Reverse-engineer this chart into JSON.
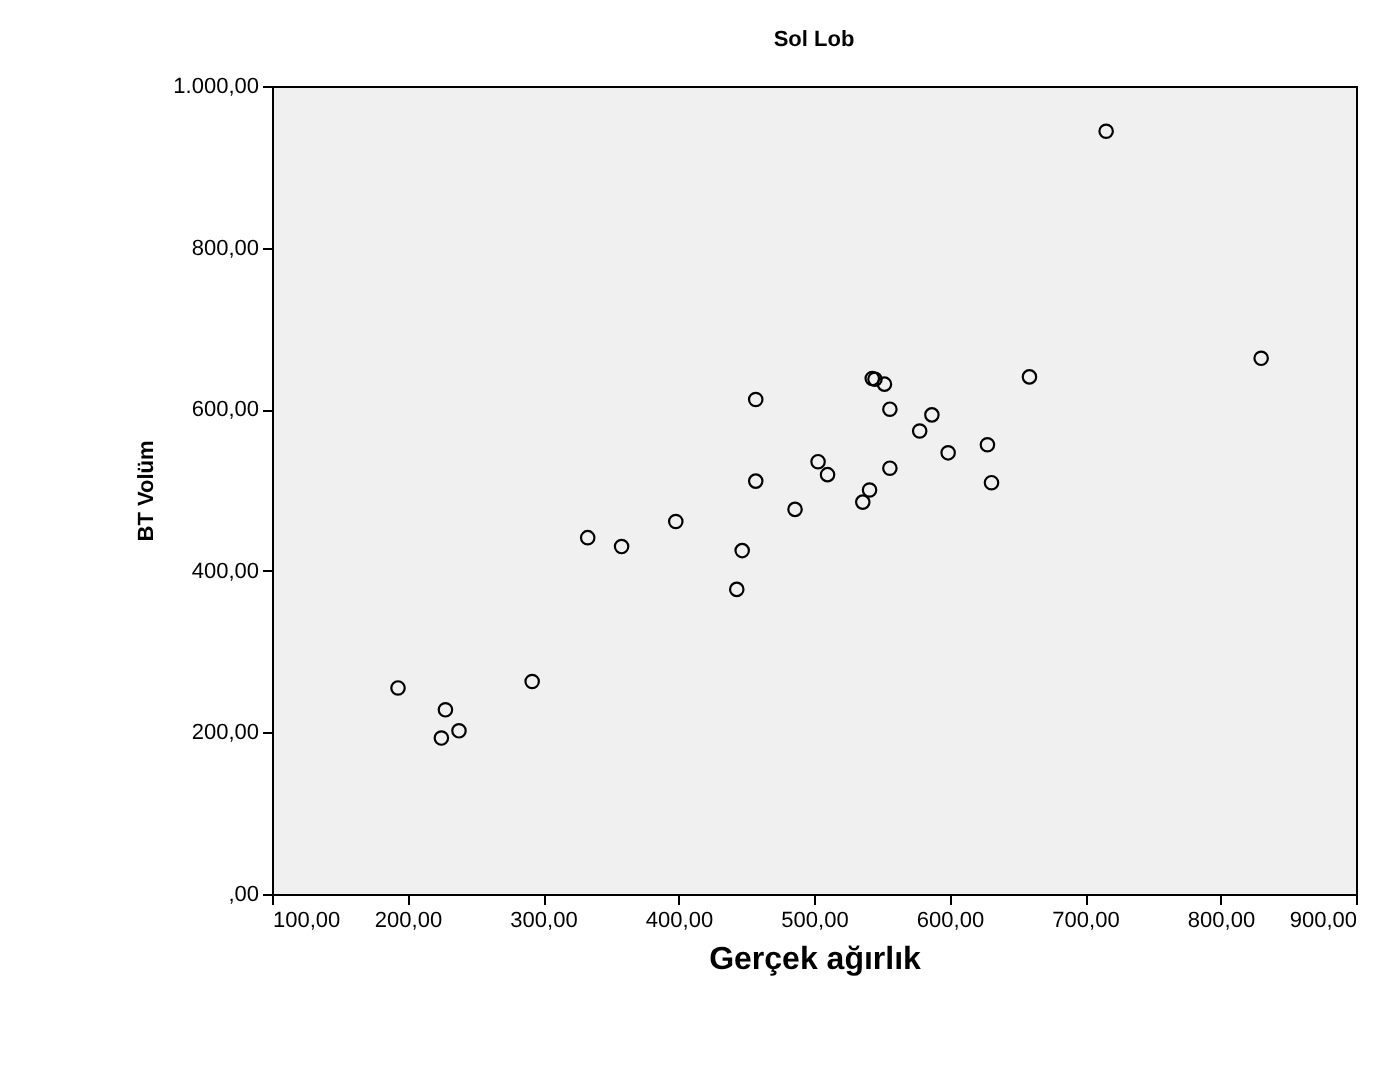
{
  "chart_data": {
    "type": "scatter",
    "title": "Sol Lob",
    "xlabel": "Gerçek ağırlık",
    "ylabel": "BT Volüm",
    "x": [
      715.6,
      830,
      659,
      543,
      545,
      552,
      457,
      556,
      587,
      578,
      599,
      628,
      631,
      556,
      503,
      510,
      457,
      541,
      536,
      486,
      398,
      333,
      358,
      447,
      443,
      292,
      193,
      228,
      238,
      225
    ],
    "series": [
      {
        "color": "#000000",
        "values": [
          944,
          663,
          640,
          638,
          637,
          631,
          612,
          600,
          593,
          573,
          546,
          556,
          509,
          527,
          535,
          519,
          511,
          500,
          485,
          476,
          461,
          441,
          430,
          425,
          377,
          263,
          255,
          228,
          202,
          193
        ]
      }
    ],
    "xlim": [
      100,
      900
    ],
    "ylim": [
      0,
      1000
    ],
    "xticks": [
      {
        "value": 100,
        "label": "100,00"
      },
      {
        "value": 200,
        "label": "200,00"
      },
      {
        "value": 300,
        "label": "300,00"
      },
      {
        "value": 400,
        "label": "400,00"
      },
      {
        "value": 500,
        "label": "500,00"
      },
      {
        "value": 600,
        "label": "600,00"
      },
      {
        "value": 700,
        "label": "700,00"
      },
      {
        "value": 800,
        "label": "800,00"
      },
      {
        "value": 900,
        "label": "900,00"
      }
    ],
    "yticks": [
      {
        "value": 0,
        "label": ",00"
      },
      {
        "value": 200,
        "label": "200,00"
      },
      {
        "value": 400,
        "label": "400,00"
      },
      {
        "value": 600,
        "label": "600,00"
      },
      {
        "value": 800,
        "label": "800,00"
      },
      {
        "value": 1000,
        "label": "1.000,00"
      }
    ],
    "grid": false,
    "marker": "circle",
    "legend": false
  }
}
